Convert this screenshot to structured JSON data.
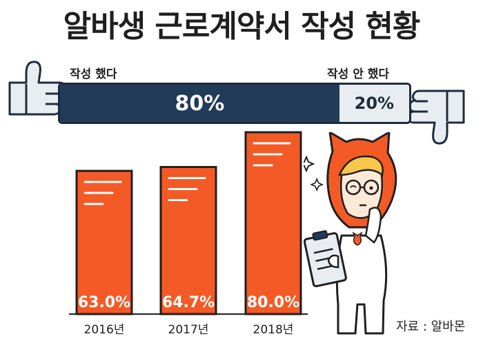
{
  "title": "알바생 근로계약서 작성 현황",
  "split": {
    "yes_label": "작성 했다",
    "no_label": "작성 안 했다",
    "yes_value": "80%",
    "no_value": "20%",
    "yes_percent": 80,
    "no_percent": 20
  },
  "chart_data": {
    "type": "bar",
    "categories": [
      "2016년",
      "2017년",
      "2018년"
    ],
    "values": [
      63.0,
      64.7,
      80.0
    ],
    "value_labels": [
      "63.0%",
      "64.7%",
      "80.0%"
    ],
    "ylim": [
      0,
      100
    ],
    "color": "#f45a26"
  },
  "source": "자료 : 알바몬",
  "colors": {
    "bar": "#f45a26",
    "dark_navy": "#223b59",
    "light_segment": "#e8edf2"
  }
}
